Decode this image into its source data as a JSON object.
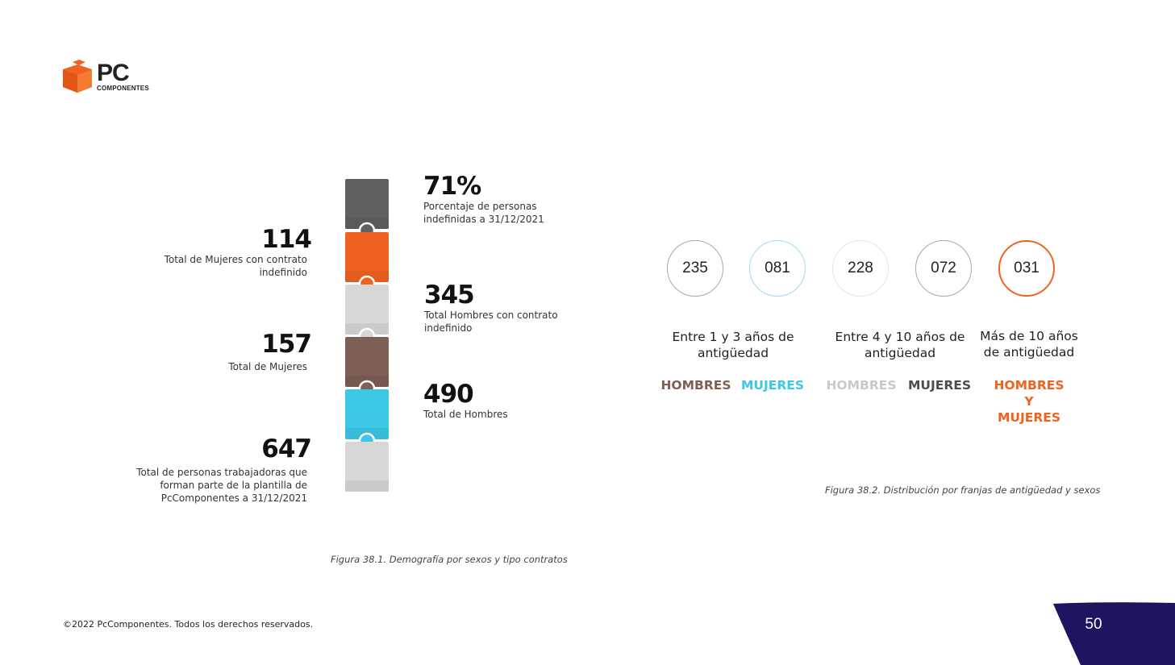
{
  "colors": {
    "orange": "#f0621f",
    "cyan": "#3cc8e6",
    "brown": "#7d5f55",
    "dark_gray": "#606060",
    "light_gray": "#d7d7d5",
    "navy": "#1c1560"
  },
  "logo": {
    "text": "PC",
    "subtext": "COMPONENTES"
  },
  "figure1": {
    "stats": [
      {
        "value": "71%",
        "desc": [
          "Porcentaje de personas",
          "indefinidas a 31/12/2021"
        ]
      },
      {
        "value": "114",
        "desc": [
          "Total de Mujeres con contrato",
          "indefinido"
        ]
      },
      {
        "value": "345",
        "desc": [
          "Total Hombres con contrato",
          "indefinido"
        ]
      },
      {
        "value": "157",
        "desc": [
          "Total de Mujeres"
        ]
      },
      {
        "value": "490",
        "desc": [
          "Total de Hombres"
        ]
      },
      {
        "value": "647",
        "desc": [
          "Total de personas trabajadoras que",
          "forman parte de la plantilla de",
          "PcComponentes a 31/12/2021"
        ]
      }
    ],
    "caption": "Figura 38.1. Demografía por sexos y tipo contratos"
  },
  "figure2": {
    "circles": [
      {
        "value": "235",
        "border": "#a8a8a8"
      },
      {
        "value": "081",
        "border": "#9fdbee"
      },
      {
        "value": "228",
        "border": "#e6e6e6"
      },
      {
        "value": "072",
        "border": "#a8a8a8"
      },
      {
        "value": "031",
        "border": "#f0621f"
      }
    ],
    "ranges": [
      [
        "Entre 1 y 3 años de",
        "antigüedad"
      ],
      [
        "Entre 4 y 10 años de",
        "antigüedad"
      ],
      [
        "Más de 10 años",
        "de antigüedad"
      ]
    ],
    "sexes": [
      {
        "label": [
          "HOMBRES"
        ],
        "color": "#7d5f55"
      },
      {
        "label": [
          "MUJERES"
        ],
        "color": "#3cc8e6"
      },
      {
        "label": [
          "HOMBRES"
        ],
        "color": "#c9c9c9"
      },
      {
        "label": [
          "MUJERES"
        ],
        "color": "#4d4d4d"
      },
      {
        "label": [
          "HOMBRES",
          "Y",
          "MUJERES"
        ],
        "color": "#f0621f"
      }
    ],
    "caption": "Figura 38.2. Distribución por franjas de antigüedad y sexos"
  },
  "footer": {
    "copyright": "©2022 PcComponentes. Todos los derechos reservados.",
    "page_number": "50"
  }
}
